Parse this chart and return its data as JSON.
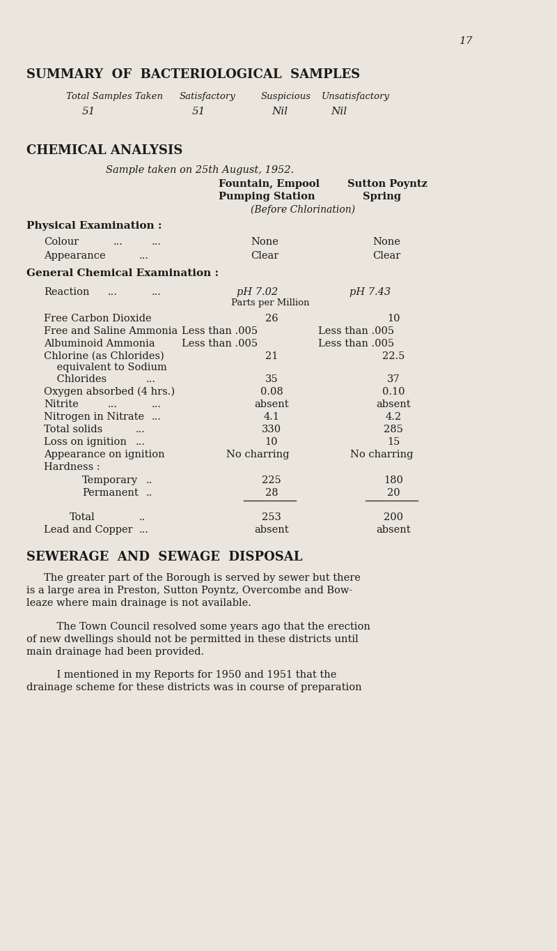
{
  "bg_color": "#eae6dd",
  "text_color": "#1a1a1a",
  "page_number": "17",
  "section1_title": "SUMMARY  OF  BACTERIOLOGICAL  SAMPLES",
  "table1_headers": [
    "Total Samples Taken",
    "Satisfactory",
    "Suspicious",
    "Unsatisfactory"
  ],
  "table1_values": [
    "51",
    "51",
    "Nil",
    "Nil"
  ],
  "section2_title": "CHEMICAL ANALYSIS",
  "sample_date": "Sample taken on 25th August, 1952.",
  "col1_header1": "Fountain, Empool",
  "col1_header2": "Pumping Station",
  "col2_header1": "Sutton Poyntz",
  "col2_header2": "Spring",
  "col_sub": "(Before Chlorination)",
  "subsection1": "Physical Examination :",
  "subsection2": "General Chemical Examination :",
  "reaction_val1": "pH 7.02",
  "reaction_val2": "pH 7.43",
  "parts_per_million": "Parts per Million",
  "hardness_label": "Hardness :",
  "section3_title": "SEWERAGE  AND  SEWAGE  DISPOSAL",
  "para1_line1": "The greater part of the Borough is served by sewer but there",
  "para1_line2": "is a large area in Preston, Sutton Poyntz, Overcombe and Bow-",
  "para1_line3": "leaze where main drainage is not available.",
  "para2_line1": "    The Town Council resolved some years ago that the erection",
  "para2_line2": "of new dwellings should not be permitted in these districts until",
  "para2_line3": "main drainage had been provided.",
  "para3_line1": "    I mentioned in my Reports for 1950 and 1951 that the",
  "para3_line2": "drainage scheme for these districts was in course of preparation"
}
